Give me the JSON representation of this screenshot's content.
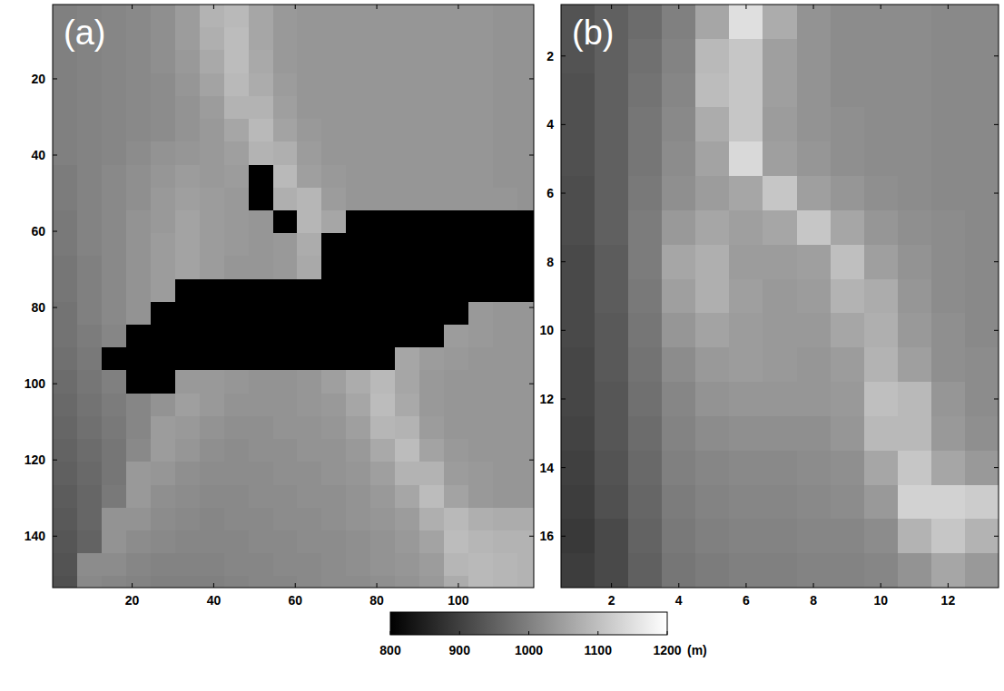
{
  "chart_data": [
    {
      "type": "heatmap",
      "panel_label": "(a)",
      "xlim": [
        0.5,
        118.5
      ],
      "ylim": [
        153.5,
        0.5
      ],
      "xticks": [
        20,
        40,
        60,
        80,
        100
      ],
      "yticks": [
        20,
        40,
        60,
        80,
        100,
        120,
        140
      ],
      "x_edges": [
        0.5,
        6.5,
        12.5,
        18.5,
        24.5,
        30.5,
        36.5,
        42.5,
        48.5,
        54.5,
        60.5,
        66.5,
        72.5,
        78.5,
        84.5,
        90.5,
        96.5,
        102.5,
        108.5,
        114.5,
        118.5
      ],
      "y_edges": [
        0.5,
        6.5,
        12.5,
        18.5,
        24.5,
        30.5,
        36.5,
        42.5,
        48.5,
        54.5,
        60.5,
        66.5,
        72.5,
        78.5,
        84.5,
        90.5,
        96.5,
        102.5,
        108.5,
        114.5,
        120.5,
        126.5,
        132.5,
        138.5,
        144.5,
        150.5,
        153.5
      ],
      "cells": [
        [
          1000,
          1005,
          1010,
          1015,
          1025,
          1045,
          1080,
          1090,
          1060,
          1040,
          1035,
          1035,
          1035,
          1035,
          1035,
          1035,
          1035,
          1035,
          1030,
          1030
        ],
        [
          1000,
          1005,
          1010,
          1015,
          1025,
          1045,
          1075,
          1095,
          1060,
          1040,
          1035,
          1035,
          1035,
          1035,
          1035,
          1035,
          1035,
          1035,
          1030,
          1030
        ],
        [
          1000,
          1005,
          1010,
          1015,
          1025,
          1040,
          1065,
          1095,
          1065,
          1040,
          1035,
          1035,
          1035,
          1035,
          1035,
          1035,
          1035,
          1035,
          1030,
          1030
        ],
        [
          1000,
          1005,
          1010,
          1015,
          1020,
          1035,
          1055,
          1090,
          1070,
          1045,
          1035,
          1035,
          1035,
          1035,
          1035,
          1035,
          1035,
          1035,
          1030,
          1030
        ],
        [
          1000,
          1005,
          1010,
          1015,
          1020,
          1030,
          1045,
          1080,
          1080,
          1050,
          1035,
          1035,
          1035,
          1035,
          1035,
          1035,
          1035,
          1035,
          1030,
          1030
        ],
        [
          1000,
          1005,
          1010,
          1015,
          1020,
          1030,
          1040,
          1060,
          1090,
          1055,
          1040,
          1035,
          1035,
          1035,
          1035,
          1035,
          1035,
          1035,
          1030,
          1030
        ],
        [
          1000,
          1005,
          1010,
          1020,
          1030,
          1035,
          1040,
          1050,
          1080,
          1075,
          1045,
          1035,
          1035,
          1035,
          1035,
          1035,
          1035,
          1035,
          1030,
          1030
        ],
        [
          995,
          1005,
          1015,
          1025,
          1035,
          1045,
          1040,
          1045,
          800,
          1090,
          1050,
          1040,
          1035,
          1035,
          1035,
          1035,
          1035,
          1035,
          1030,
          1030
        ],
        [
          995,
          1005,
          1015,
          1025,
          1040,
          1050,
          1045,
          1040,
          800,
          1075,
          1085,
          1045,
          1035,
          1035,
          1035,
          1035,
          1035,
          1035,
          1035,
          1030
        ],
        [
          990,
          1005,
          1015,
          1030,
          1040,
          1055,
          1045,
          1040,
          1035,
          800,
          1085,
          1060,
          800,
          800,
          800,
          800,
          800,
          800,
          800,
          800
        ],
        [
          990,
          1005,
          1015,
          1030,
          1045,
          1055,
          1045,
          1040,
          1035,
          1040,
          1070,
          800,
          800,
          800,
          800,
          800,
          800,
          800,
          800,
          800
        ],
        [
          985,
          1000,
          1015,
          1030,
          1045,
          1055,
          1045,
          1035,
          1035,
          1040,
          1065,
          800,
          800,
          800,
          800,
          800,
          800,
          800,
          800,
          800
        ],
        [
          985,
          1000,
          1015,
          1030,
          1045,
          800,
          800,
          800,
          800,
          800,
          800,
          800,
          800,
          800,
          800,
          800,
          800,
          800,
          800,
          800
        ],
        [
          980,
          1000,
          1015,
          1030,
          800,
          800,
          800,
          800,
          800,
          800,
          800,
          800,
          800,
          800,
          800,
          800,
          800,
          1040,
          1035,
          1035
        ],
        [
          980,
          995,
          1010,
          800,
          800,
          800,
          800,
          800,
          800,
          800,
          800,
          800,
          800,
          800,
          800,
          800,
          1045,
          1040,
          1035,
          1035
        ],
        [
          975,
          990,
          800,
          800,
          800,
          800,
          800,
          800,
          800,
          800,
          800,
          800,
          800,
          800,
          1060,
          1045,
          1040,
          1035,
          1035,
          1035
        ],
        [
          970,
          985,
          1000,
          800,
          800,
          1040,
          1040,
          1035,
          1030,
          1030,
          1035,
          1050,
          1070,
          1090,
          1060,
          1040,
          1035,
          1035,
          1035,
          1035
        ],
        [
          965,
          980,
          995,
          1010,
          1030,
          1050,
          1040,
          1030,
          1030,
          1030,
          1035,
          1040,
          1060,
          1095,
          1065,
          1040,
          1035,
          1035,
          1035,
          1035
        ],
        [
          960,
          975,
          990,
          1010,
          1045,
          1040,
          1030,
          1025,
          1025,
          1030,
          1030,
          1035,
          1050,
          1085,
          1080,
          1045,
          1035,
          1035,
          1035,
          1035
        ],
        [
          955,
          970,
          985,
          1015,
          1045,
          1035,
          1025,
          1020,
          1025,
          1025,
          1030,
          1030,
          1040,
          1065,
          1095,
          1055,
          1040,
          1035,
          1035,
          1035
        ],
        [
          950,
          965,
          985,
          1040,
          1035,
          1025,
          1020,
          1020,
          1020,
          1025,
          1025,
          1030,
          1035,
          1050,
          1080,
          1080,
          1045,
          1040,
          1035,
          1035
        ],
        [
          945,
          960,
          990,
          1040,
          1025,
          1020,
          1015,
          1015,
          1020,
          1020,
          1025,
          1025,
          1030,
          1040,
          1060,
          1095,
          1055,
          1040,
          1035,
          1035
        ],
        [
          940,
          960,
          1030,
          1030,
          1020,
          1015,
          1010,
          1015,
          1015,
          1020,
          1020,
          1025,
          1030,
          1035,
          1045,
          1075,
          1090,
          1075,
          1070,
          1070
        ],
        [
          935,
          955,
          1030,
          1020,
          1015,
          1010,
          1010,
          1010,
          1015,
          1015,
          1020,
          1020,
          1025,
          1030,
          1040,
          1055,
          1095,
          1085,
          1080,
          1080
        ],
        [
          930,
          1020,
          1020,
          1010,
          1005,
          1005,
          1005,
          1010,
          1010,
          1015,
          1015,
          1020,
          1025,
          1030,
          1035,
          1045,
          1085,
          1090,
          1085,
          1080
        ],
        [
          925,
          1015,
          1010,
          1005,
          1000,
          1000,
          1000,
          1005,
          1010,
          1010,
          1015,
          1020,
          1020,
          1025,
          1030,
          1040,
          1070,
          1090,
          1085,
          1080
        ]
      ]
    },
    {
      "type": "heatmap",
      "panel_label": "(b)",
      "xlim": [
        0.5,
        13.5
      ],
      "ylim": [
        17.5,
        0.5
      ],
      "xticks": [
        2,
        4,
        6,
        8,
        10,
        12
      ],
      "yticks": [
        2,
        4,
        6,
        8,
        10,
        12,
        14,
        16
      ],
      "x_edges": [
        0.5,
        1.5,
        2.5,
        3.5,
        4.5,
        5.5,
        6.5,
        7.5,
        8.5,
        9.5,
        10.5,
        11.5,
        12.5,
        13.5
      ],
      "y_edges": [
        0.5,
        1.5,
        2.5,
        3.5,
        4.5,
        5.5,
        6.5,
        7.5,
        8.5,
        9.5,
        10.5,
        11.5,
        12.5,
        13.5,
        14.5,
        15.5,
        16.5,
        17.5
      ],
      "cells": [
        [
          930,
          950,
          970,
          1000,
          1060,
          1150,
          1070,
          1030,
          1020,
          1020,
          1020,
          1015,
          1015
        ],
        [
          930,
          950,
          975,
          1005,
          1090,
          1110,
          1050,
          1030,
          1020,
          1020,
          1020,
          1015,
          1015
        ],
        [
          925,
          950,
          980,
          1010,
          1095,
          1110,
          1050,
          1030,
          1020,
          1020,
          1020,
          1015,
          1015
        ],
        [
          925,
          950,
          985,
          1015,
          1070,
          1110,
          1045,
          1030,
          1025,
          1020,
          1020,
          1015,
          1015
        ],
        [
          925,
          950,
          985,
          1020,
          1055,
          1140,
          1050,
          1035,
          1025,
          1020,
          1020,
          1015,
          1015
        ],
        [
          920,
          950,
          990,
          1025,
          1045,
          1060,
          1110,
          1050,
          1035,
          1025,
          1020,
          1015,
          1015
        ],
        [
          920,
          950,
          995,
          1040,
          1060,
          1050,
          1060,
          1110,
          1060,
          1035,
          1025,
          1020,
          1015
        ],
        [
          915,
          945,
          995,
          1060,
          1075,
          1045,
          1045,
          1050,
          1100,
          1050,
          1030,
          1020,
          1015
        ],
        [
          915,
          945,
          990,
          1050,
          1075,
          1050,
          1040,
          1045,
          1080,
          1070,
          1035,
          1020,
          1015
        ],
        [
          915,
          940,
          985,
          1035,
          1055,
          1045,
          1040,
          1040,
          1060,
          1075,
          1040,
          1025,
          1015
        ],
        [
          910,
          940,
          980,
          1020,
          1040,
          1045,
          1040,
          1035,
          1045,
          1080,
          1050,
          1025,
          1020
        ],
        [
          910,
          935,
          975,
          1010,
          1030,
          1035,
          1035,
          1035,
          1040,
          1100,
          1090,
          1035,
          1020
        ],
        [
          905,
          935,
          970,
          1005,
          1020,
          1025,
          1025,
          1025,
          1035,
          1090,
          1090,
          1040,
          1025
        ],
        [
          900,
          930,
          965,
          1000,
          1010,
          1015,
          1015,
          1020,
          1025,
          1060,
          1110,
          1060,
          1040
        ],
        [
          895,
          925,
          960,
          995,
          1005,
          1010,
          1010,
          1015,
          1020,
          1040,
          1130,
          1130,
          1120
        ],
        [
          890,
          915,
          955,
          990,
          1000,
          1005,
          1005,
          1010,
          1010,
          1020,
          1080,
          1110,
          1080
        ],
        [
          895,
          915,
          950,
          985,
          995,
          1000,
          1000,
          1005,
          1005,
          1010,
          1030,
          1060,
          1040
        ]
      ]
    }
  ],
  "colorbar": {
    "range": [
      800,
      1200
    ],
    "ticks": [
      800,
      900,
      1000,
      1100,
      1200
    ],
    "unit": "(m)"
  }
}
